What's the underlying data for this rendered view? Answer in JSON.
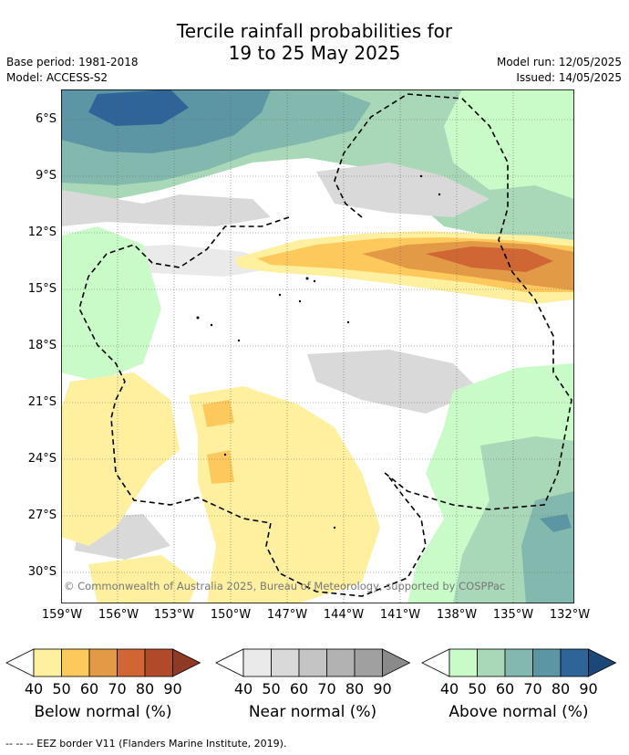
{
  "title": {
    "line1": "Tercile rainfall probabilities for",
    "line2": "19 to 25 May 2025"
  },
  "info": {
    "base_period": "Base period: 1981-2018",
    "model": "Model: ACCESS-S2",
    "model_run": "Model run: 12/05/2025",
    "issued": "Issued: 14/05/2025"
  },
  "map": {
    "copyright": "© Commonwealth of Australia 2025, Bureau of Meteorology, supported by COSPPac",
    "lat_labels": [
      "6°S",
      "9°S",
      "12°S",
      "15°S",
      "18°S",
      "21°S",
      "24°S",
      "27°S",
      "30°S"
    ],
    "lon_labels": [
      "159°W",
      "156°W",
      "153°W",
      "150°W",
      "147°W",
      "144°W",
      "141°W",
      "138°W",
      "135°W",
      "132°W"
    ]
  },
  "legend": {
    "tick_labels": [
      "40",
      "50",
      "60",
      "70",
      "80",
      "90"
    ],
    "groups": [
      {
        "name": "Below normal (%)",
        "colors": [
          "#fff0a0",
          "#fdc95d",
          "#e39a47",
          "#cf6634",
          "#b14a29",
          "#8f3a24"
        ]
      },
      {
        "name": "Near normal (%)",
        "colors": [
          "#eaeaea",
          "#d9d9d9",
          "#c4c4c4",
          "#b2b2b2",
          "#a0a0a0",
          "#8a8a8a"
        ]
      },
      {
        "name": "Above normal (%)",
        "colors": [
          "#c8fbc8",
          "#a8d8b8",
          "#82b8ae",
          "#5c96a4",
          "#2e6497",
          "#1c4878"
        ]
      }
    ]
  },
  "footnote": "--  --  -- EEZ border V11 (Flanders Marine Institute, 2019)."
}
